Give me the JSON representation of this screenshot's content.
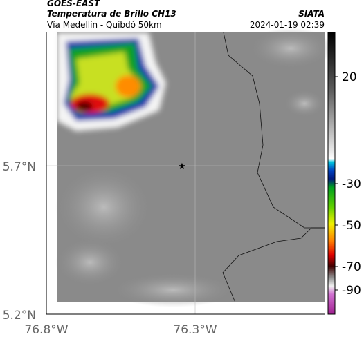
{
  "header": {
    "title": "GOES-EAST",
    "subtitle": "Temperatura de Brillo CH13",
    "route": "Vía Medellín - Quibdó 50km",
    "source": "SIATA",
    "timestamp": "2024-01-19 02:39"
  },
  "map": {
    "lat_labels": [
      "5.7°N",
      "5.2°N"
    ],
    "lon_labels": [
      "76.8°W",
      "76.3°W"
    ]
  },
  "colorbar": {
    "ticks": [
      20,
      -30,
      -50,
      -70,
      -90
    ]
  }
}
